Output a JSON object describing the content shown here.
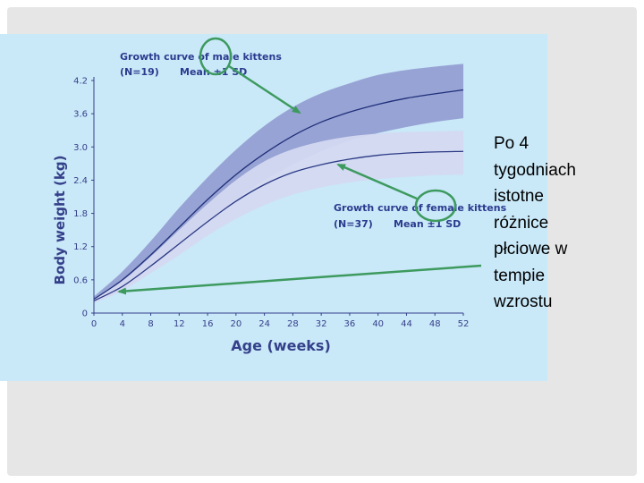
{
  "side_text": "Po 4\ntygodniach\nistotne\nróżnice\npłciowe w\ntempie\nwzrostu",
  "colors": {
    "panel_bg": "#c9e8f8",
    "male_band": "#97a3d4",
    "female_band": "#d4d9f1",
    "male_line": "#1f2f7a",
    "female_line": "#2c3a85",
    "axis_text": "#35408a",
    "annotation_text": "#2a3b8f",
    "arrow": "#3d9a5e"
  },
  "chart_data": {
    "type": "line",
    "xlabel": "Age (weeks)",
    "ylabel": "Body weight (kg)",
    "xlim": [
      0,
      52
    ],
    "ylim": [
      0,
      4.2
    ],
    "x_ticks": [
      "0",
      "4",
      "8",
      "12",
      "16",
      "20",
      "24",
      "28",
      "32",
      "36",
      "40",
      "44",
      "48",
      "52"
    ],
    "y_ticks": [
      "0",
      "0.6",
      "1.2",
      "1.8",
      "2.4",
      "3.0",
      "3.6",
      "4.2"
    ],
    "x": [
      0,
      4,
      8,
      12,
      16,
      20,
      24,
      28,
      32,
      36,
      40,
      44,
      48,
      52
    ],
    "series": [
      {
        "name": "Growth curve of male kittens",
        "mean": [
          0.25,
          0.6,
          1.05,
          1.55,
          2.05,
          2.5,
          2.88,
          3.2,
          3.45,
          3.63,
          3.77,
          3.88,
          3.96,
          4.03
        ],
        "upper": [
          0.3,
          0.75,
          1.3,
          1.9,
          2.45,
          2.95,
          3.38,
          3.72,
          3.97,
          4.15,
          4.3,
          4.39,
          4.45,
          4.5
        ],
        "lower": [
          0.2,
          0.47,
          0.85,
          1.25,
          1.65,
          2.05,
          2.4,
          2.68,
          2.92,
          3.11,
          3.25,
          3.36,
          3.45,
          3.52
        ]
      },
      {
        "name": "Growth curve of female kittens",
        "mean": [
          0.22,
          0.48,
          0.85,
          1.25,
          1.65,
          2.02,
          2.32,
          2.54,
          2.68,
          2.78,
          2.85,
          2.89,
          2.91,
          2.92
        ],
        "upper": [
          0.26,
          0.58,
          1.02,
          1.5,
          1.97,
          2.4,
          2.74,
          2.96,
          3.1,
          3.19,
          3.24,
          3.27,
          3.28,
          3.29
        ],
        "lower": [
          0.18,
          0.4,
          0.72,
          1.05,
          1.4,
          1.7,
          1.95,
          2.14,
          2.27,
          2.36,
          2.42,
          2.46,
          2.49,
          2.5
        ]
      }
    ],
    "annotations": [
      {
        "line1": "Growth curve of male kittens",
        "line2a": "(N=19)",
        "line2b": "Mean ±1 SD"
      },
      {
        "line1": "Growth curve of female kittens",
        "line2a": "(N=37)",
        "line2b": "Mean ±1 SD"
      }
    ]
  }
}
